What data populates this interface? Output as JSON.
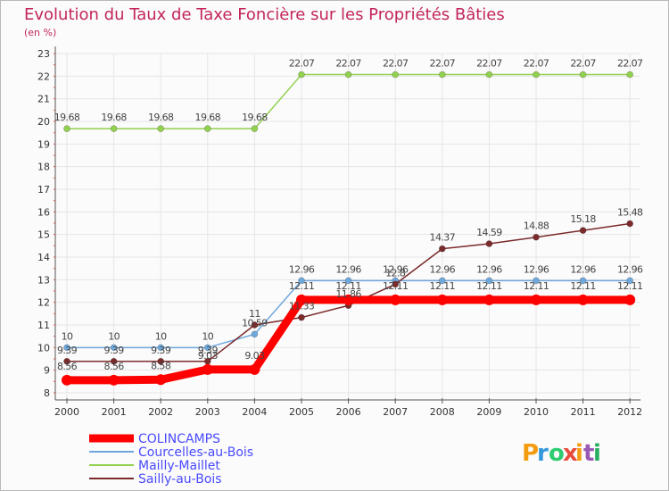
{
  "chart_data": {
    "type": "line",
    "title": "Evolution du Taux de Taxe Foncière sur les Propriétés Bâties",
    "ylabel": "(en %)",
    "xlabel": "",
    "ylim": [
      8,
      23
    ],
    "yticks": [
      "8",
      "9",
      "10",
      "11",
      "12",
      "13",
      "14",
      "15",
      "16",
      "17",
      "18",
      "19",
      "20",
      "21",
      "22",
      "23"
    ],
    "categories": [
      "2000",
      "2001",
      "2002",
      "2003",
      "2004",
      "2005",
      "2006",
      "2007",
      "2008",
      "2009",
      "2010",
      "2011",
      "2012"
    ],
    "grid": true,
    "legend_position": "bottom-left",
    "series": [
      {
        "name": "COLINCAMPS",
        "color": "#ff0000",
        "values": [
          8.56,
          8.56,
          8.58,
          9.03,
          9.03,
          12.11,
          12.11,
          12.11,
          12.11,
          12.11,
          12.11,
          12.11,
          12.11
        ],
        "labels": [
          "8.56",
          "8.56",
          "8.58",
          "9.03",
          "9.03",
          "12.11",
          "12.11",
          "12.11",
          "12.11",
          "12.11",
          "12.11",
          "12.11",
          "12.11"
        ]
      },
      {
        "name": "Courcelles-au-Bois",
        "color": "#6fa8dc",
        "values": [
          10,
          10,
          10,
          10,
          10.59,
          12.96,
          12.96,
          12.96,
          12.96,
          12.96,
          12.96,
          12.96,
          12.96
        ],
        "labels": [
          "10",
          "10",
          "10",
          "10",
          "10.59",
          "12.96",
          "12.96",
          "12.96",
          "12.96",
          "12.96",
          "12.96",
          "12.96",
          "12.96"
        ]
      },
      {
        "name": "Mailly-Maillet",
        "color": "#92d050",
        "values": [
          19.68,
          19.68,
          19.68,
          19.68,
          19.68,
          22.07,
          22.07,
          22.07,
          22.07,
          22.07,
          22.07,
          22.07,
          22.07
        ],
        "labels": [
          "19.68",
          "19.68",
          "19.68",
          "19.68",
          "19.68",
          "22.07",
          "22.07",
          "22.07",
          "22.07",
          "22.07",
          "22.07",
          "22.07",
          "22.07"
        ]
      },
      {
        "name": "Sailly-au-Bois",
        "color": "#7b2b2b",
        "values": [
          9.39,
          9.39,
          9.39,
          9.39,
          11,
          11.33,
          11.86,
          12.8,
          14.37,
          14.59,
          14.88,
          15.18,
          15.48
        ],
        "labels": [
          "9.39",
          "9.39",
          "9.39",
          "9.39",
          "11",
          "11.33",
          "11.86",
          "12.8",
          "14.37",
          "14.59",
          "14.88",
          "15.18",
          "15.48"
        ]
      }
    ]
  },
  "logo": {
    "text": "Proxiti",
    "colors": [
      "#f39c12",
      "#3498db",
      "#2ecc71",
      "#e74c3c",
      "#f39c12",
      "#9b59b6",
      "#27ae60"
    ]
  }
}
